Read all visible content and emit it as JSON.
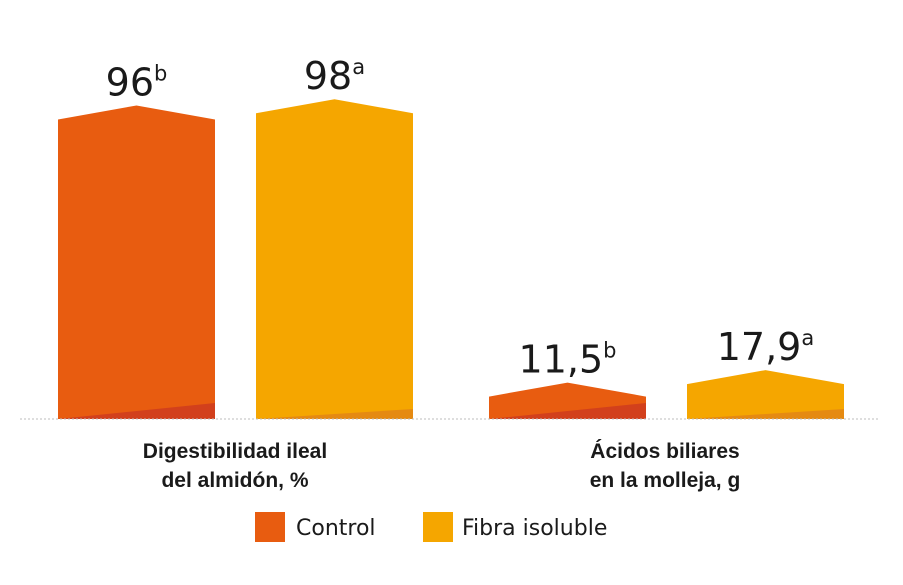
{
  "chart_data": {
    "type": "bar",
    "categories": [
      {
        "line1": "Digestibilidad ileal",
        "line2": "del almidón, %"
      },
      {
        "line1": "Ácidos biliares",
        "line2": "en la molleja, g"
      }
    ],
    "series": [
      {
        "name": "Control",
        "color": "#E85C10",
        "shade": "#D2401C",
        "values": [
          96,
          11.5
        ],
        "labels": [
          "96",
          "11,5"
        ],
        "superscripts": [
          "b",
          "b"
        ]
      },
      {
        "name": "Fibra isoluble",
        "color": "#F5A600",
        "shade": "#E58A12",
        "values": [
          98,
          17.9
        ],
        "labels": [
          "98",
          "17,9"
        ],
        "superscripts": [
          "a",
          "a"
        ]
      }
    ],
    "legend": "bottom",
    "grid": false
  }
}
